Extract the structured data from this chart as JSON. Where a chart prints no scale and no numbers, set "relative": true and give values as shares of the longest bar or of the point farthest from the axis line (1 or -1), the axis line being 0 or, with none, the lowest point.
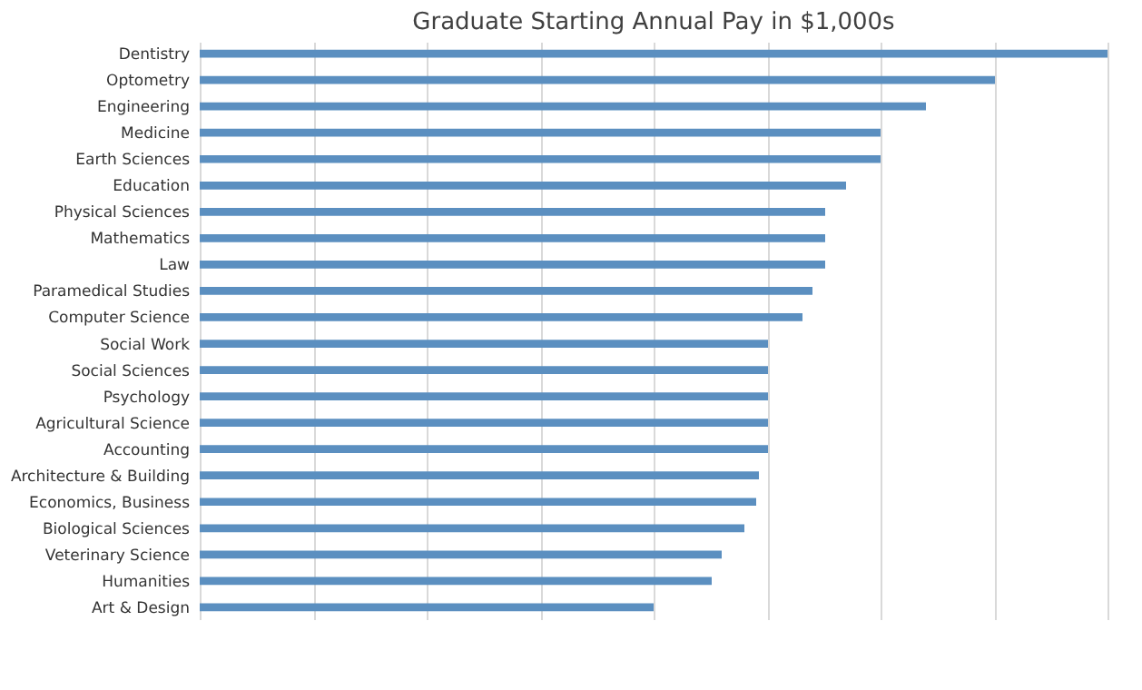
{
  "chart_data": {
    "type": "bar",
    "orientation": "horizontal",
    "relative": true,
    "title": "Graduate Starting Annual Pay in $1,000s",
    "categories": [
      "Dentistry",
      "Optometry",
      "Engineering",
      "Medicine",
      "Earth Sciences",
      "Education",
      "Physical Sciences",
      "Mathematics",
      "Law",
      "Paramedical Studies",
      "Computer Science",
      "Social Work",
      "Social Sciences",
      "Psychology",
      "Agricultural Science",
      "Accounting",
      "Architecture & Building",
      "Economics, Business",
      "Biological Sciences",
      "Veterinary Science",
      "Humanities",
      "Art & Design"
    ],
    "values": [
      1.0,
      0.876,
      0.8,
      0.75,
      0.75,
      0.712,
      0.689,
      0.689,
      0.689,
      0.675,
      0.664,
      0.626,
      0.626,
      0.626,
      0.626,
      0.626,
      0.616,
      0.613,
      0.6,
      0.575,
      0.564,
      0.5
    ],
    "color": "#5b8fc0",
    "grid": true,
    "legend": false
  }
}
